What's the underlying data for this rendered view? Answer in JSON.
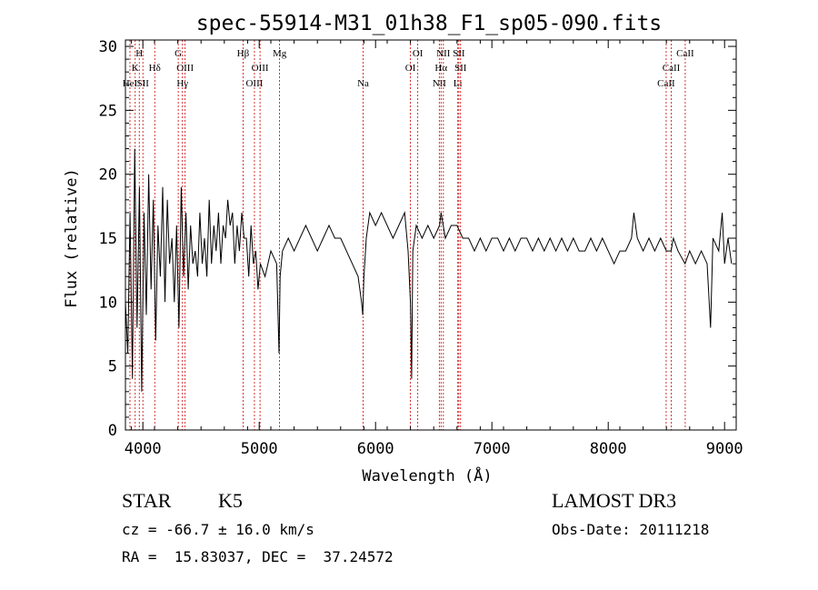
{
  "chart_data": {
    "type": "line",
    "title": "spec-55914-M31_01h38_F1_sp05-090.fits",
    "xlabel": "Wavelength (Å)",
    "ylabel": "Flux (relative)",
    "xlim": [
      3850,
      9100
    ],
    "ylim": [
      0,
      30.5
    ],
    "xticks": [
      4000,
      5000,
      6000,
      7000,
      8000,
      9000
    ],
    "yticks": [
      0,
      5,
      10,
      15,
      20,
      25,
      30
    ],
    "grid": false,
    "spectrum": {
      "x": [
        3850,
        3870,
        3890,
        3910,
        3930,
        3950,
        3970,
        3990,
        4010,
        4030,
        4050,
        4070,
        4090,
        4110,
        4130,
        4150,
        4170,
        4190,
        4210,
        4230,
        4250,
        4270,
        4290,
        4310,
        4330,
        4350,
        4370,
        4390,
        4410,
        4430,
        4450,
        4470,
        4490,
        4510,
        4530,
        4550,
        4570,
        4590,
        4610,
        4630,
        4650,
        4670,
        4690,
        4710,
        4730,
        4750,
        4770,
        4790,
        4810,
        4830,
        4850,
        4870,
        4890,
        4910,
        4930,
        4950,
        4970,
        4990,
        5010,
        5050,
        5100,
        5150,
        5170,
        5180,
        5200,
        5250,
        5300,
        5350,
        5400,
        5450,
        5500,
        5550,
        5600,
        5650,
        5700,
        5750,
        5800,
        5850,
        5880,
        5890,
        5900,
        5920,
        5950,
        6000,
        6050,
        6100,
        6150,
        6200,
        6250,
        6280,
        6300,
        6310,
        6320,
        6350,
        6400,
        6450,
        6500,
        6550,
        6563,
        6600,
        6650,
        6700,
        6750,
        6800,
        6850,
        6900,
        6950,
        7000,
        7050,
        7100,
        7150,
        7200,
        7250,
        7300,
        7350,
        7400,
        7450,
        7500,
        7550,
        7600,
        7650,
        7700,
        7750,
        7800,
        7850,
        7900,
        7950,
        8000,
        8050,
        8100,
        8150,
        8200,
        8220,
        8250,
        8300,
        8350,
        8400,
        8450,
        8500,
        8540,
        8560,
        8600,
        8660,
        8700,
        8750,
        8800,
        8850,
        8880,
        8900,
        8950,
        8980,
        9000,
        9030,
        9060
      ],
      "y": [
        10,
        6,
        17,
        4,
        22,
        8,
        19,
        3,
        17,
        9,
        20,
        11,
        18,
        7,
        16,
        12,
        19,
        10,
        18,
        13,
        15,
        10,
        16,
        8,
        19,
        12,
        17,
        11,
        16,
        13,
        14,
        12,
        17,
        13,
        15,
        12,
        18,
        13,
        16,
        14,
        17,
        13,
        16,
        15,
        18,
        16,
        17,
        13,
        16,
        14,
        17,
        15,
        15,
        12,
        16,
        13,
        14,
        11,
        13,
        12,
        14,
        13,
        6,
        12,
        14,
        15,
        14,
        15,
        16,
        15,
        14,
        15,
        16,
        15,
        15,
        14,
        13,
        12,
        10,
        9,
        12,
        15,
        17,
        16,
        17,
        16,
        15,
        16,
        17,
        14,
        10,
        4,
        14,
        16,
        15,
        16,
        15,
        16,
        17,
        15,
        16,
        16,
        15,
        15,
        14,
        15,
        14,
        15,
        15,
        14,
        15,
        14,
        15,
        15,
        14,
        15,
        14,
        15,
        14,
        15,
        14,
        15,
        14,
        14,
        15,
        14,
        15,
        14,
        13,
        14,
        14,
        15,
        17,
        15,
        14,
        15,
        14,
        15,
        14,
        14,
        15,
        14,
        13,
        14,
        13,
        14,
        13,
        8,
        15,
        14,
        17,
        13,
        15,
        13
      ]
    },
    "line_markers": [
      {
        "wl": 3934,
        "label": "K",
        "row": 2
      },
      {
        "wl": 3969,
        "label": "H",
        "row": 1
      },
      {
        "wl": 3889,
        "label": "HeI",
        "row": 3
      },
      {
        "wl": 4000,
        "label": "SII",
        "row": 3
      },
      {
        "wl": 4102,
        "label": "Hδ",
        "row": 2
      },
      {
        "wl": 4304,
        "label": "G",
        "row": 1
      },
      {
        "wl": 4340,
        "label": "Hγ",
        "row": 3
      },
      {
        "wl": 4363,
        "label": "OIII",
        "row": 2
      },
      {
        "wl": 4861,
        "label": "Hβ",
        "row": 1
      },
      {
        "wl": 4959,
        "label": "OIII",
        "row": 3
      },
      {
        "wl": 5007,
        "label": "OIII",
        "row": 2
      },
      {
        "wl": 5175,
        "label": "Mg",
        "row": 1
      },
      {
        "wl": 5893,
        "label": "Na",
        "row": 3
      },
      {
        "wl": 6300,
        "label": "OI",
        "row": 2
      },
      {
        "wl": 6363,
        "label": "OI",
        "row": 1
      },
      {
        "wl": 6548,
        "label": "NII",
        "row": 3
      },
      {
        "wl": 6563,
        "label": "Hα",
        "row": 2
      },
      {
        "wl": 6583,
        "label": "NII",
        "row": 1
      },
      {
        "wl": 6707,
        "label": "Li",
        "row": 3
      },
      {
        "wl": 6716,
        "label": "SII",
        "row": 1
      },
      {
        "wl": 6731,
        "label": "SII",
        "row": 2
      },
      {
        "wl": 8498,
        "label": "CaII",
        "row": 3
      },
      {
        "wl": 8542,
        "label": "CaII",
        "row": 2
      },
      {
        "wl": 8662,
        "label": "CaII",
        "row": 1
      }
    ],
    "colors": {
      "spectrum": "#000000",
      "marker": "#cc0000"
    }
  },
  "info": {
    "object_type": "STAR",
    "subclass": "K5",
    "survey": "LAMOST DR3",
    "cz": "cz = -66.7 ± 16.0 km/s",
    "obs_date": "Obs-Date: 20111218",
    "radec": "RA =  15.83037, DEC =  37.24572"
  }
}
